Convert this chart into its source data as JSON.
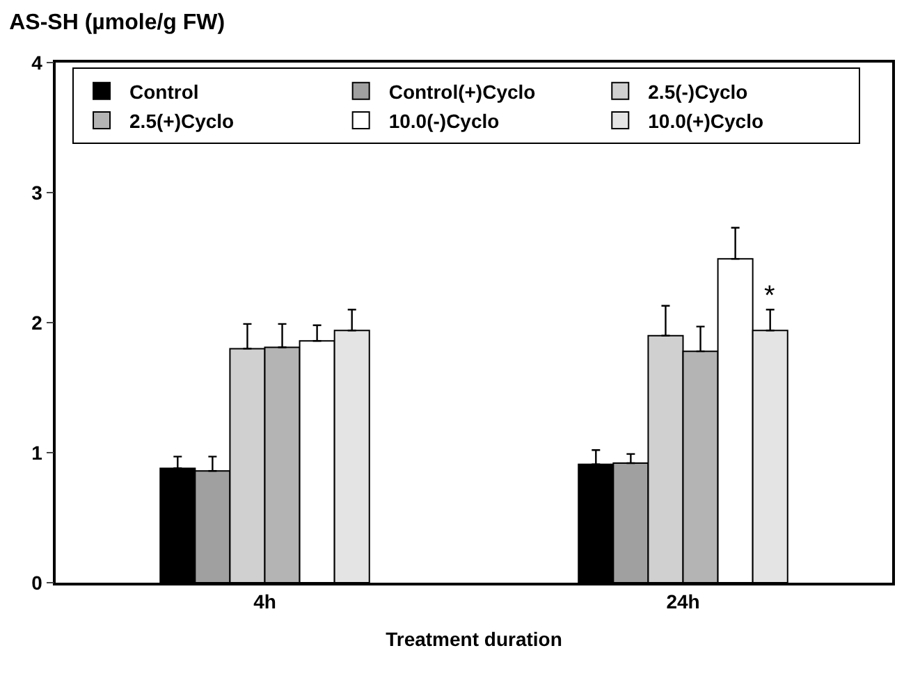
{
  "chart_data": {
    "type": "bar",
    "title": "AS-SH (µmole/g FW)",
    "xlabel": "Treatment duration",
    "categories": [
      "4h",
      "24h"
    ],
    "series": [
      {
        "name": "Control",
        "color": "#000000",
        "values": [
          0.88,
          0.91
        ],
        "errors": [
          [
            0.88,
            0.97
          ],
          [
            0.91,
            1.02
          ]
        ]
      },
      {
        "name": "Control(+)Cyclo",
        "color": "#a0a0a0",
        "values": [
          0.86,
          0.92
        ],
        "errors": [
          [
            0.86,
            0.97
          ],
          [
            0.92,
            0.99
          ]
        ]
      },
      {
        "name": "2.5(-)Cyclo",
        "color": "#d0d0d0",
        "values": [
          1.8,
          1.9
        ],
        "errors": [
          [
            1.8,
            1.99
          ],
          [
            1.9,
            2.13
          ]
        ]
      },
      {
        "name": "2.5(+)Cyclo",
        "color": "#b4b4b4",
        "values": [
          1.81,
          1.78
        ],
        "errors": [
          [
            1.81,
            1.99
          ],
          [
            1.78,
            1.97
          ]
        ]
      },
      {
        "name": "10.0(-)Cyclo",
        "color": "#ffffff",
        "values": [
          1.86,
          2.49
        ],
        "errors": [
          [
            1.86,
            1.98
          ],
          [
            2.49,
            2.73
          ]
        ]
      },
      {
        "name": "10.0(+)Cyclo",
        "color": "#e4e4e4",
        "values": [
          1.94,
          1.94
        ],
        "errors": [
          [
            1.94,
            2.1
          ],
          [
            1.94,
            2.1
          ]
        ]
      }
    ],
    "annotations": [
      "*"
    ],
    "ylim": [
      0,
      4
    ],
    "yticks": [
      0,
      1,
      2,
      3,
      4
    ],
    "legend": "top"
  }
}
